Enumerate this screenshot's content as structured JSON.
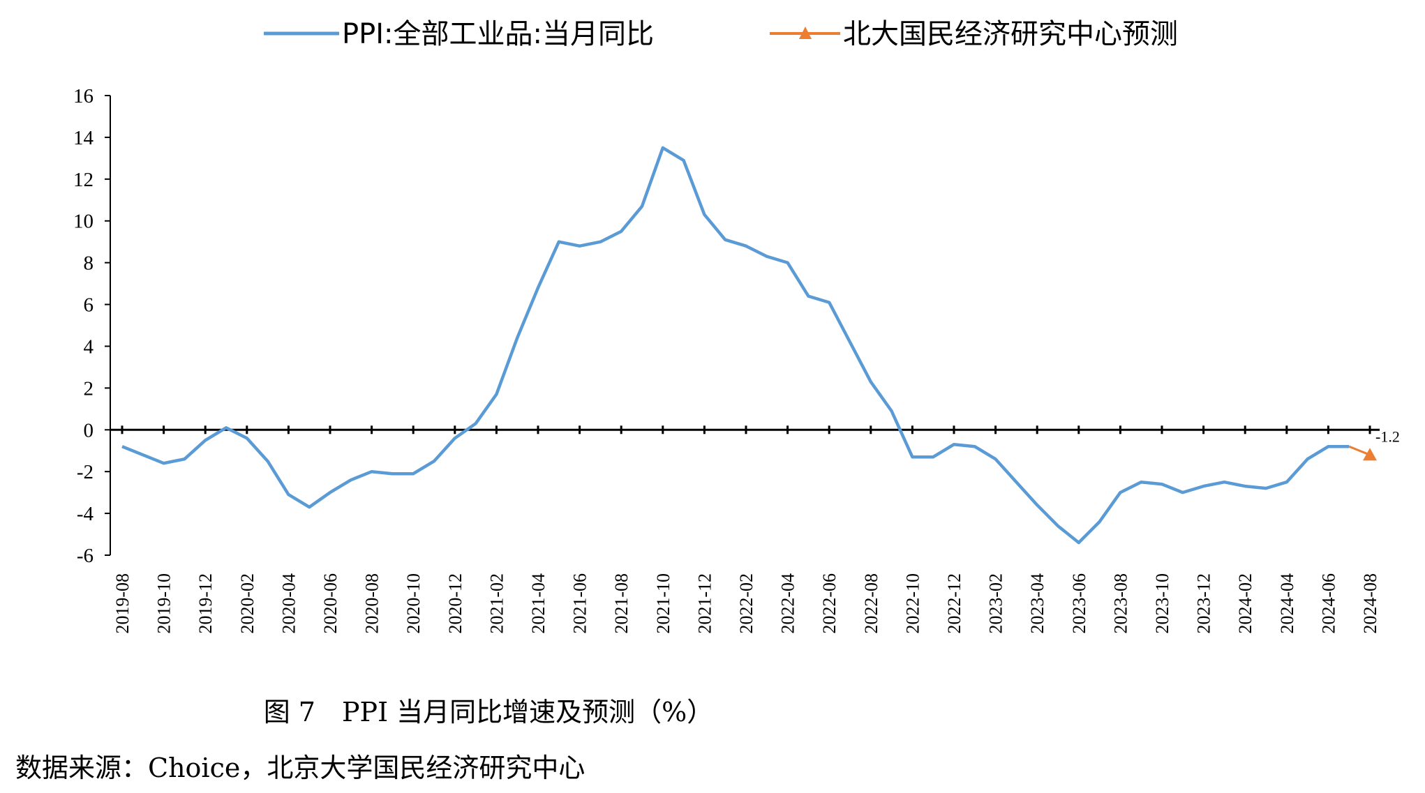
{
  "chart_data": {
    "type": "line",
    "title": "",
    "xlabel": "",
    "ylabel": "",
    "ylim": [
      -6,
      16
    ],
    "yticks": [
      -6,
      -4,
      -2,
      0,
      2,
      4,
      6,
      8,
      10,
      12,
      14,
      16
    ],
    "ytick_labels": [
      "-6",
      "-4",
      "-2",
      "0",
      "2",
      "4",
      "6",
      "8",
      "10",
      "12",
      "14",
      "16"
    ],
    "grid": false,
    "legend_position": "top-center",
    "x_categories": [
      "2019-08",
      "2019-09",
      "2019-10",
      "2019-11",
      "2019-12",
      "2020-01",
      "2020-02",
      "2020-03",
      "2020-04",
      "2020-05",
      "2020-06",
      "2020-07",
      "2020-08",
      "2020-09",
      "2020-10",
      "2020-11",
      "2020-12",
      "2021-01",
      "2021-02",
      "2021-03",
      "2021-04",
      "2021-05",
      "2021-06",
      "2021-07",
      "2021-08",
      "2021-09",
      "2021-10",
      "2021-11",
      "2021-12",
      "2022-01",
      "2022-02",
      "2022-03",
      "2022-04",
      "2022-05",
      "2022-06",
      "2022-07",
      "2022-08",
      "2022-09",
      "2022-10",
      "2022-11",
      "2022-12",
      "2023-01",
      "2023-02",
      "2023-03",
      "2023-04",
      "2023-05",
      "2023-06",
      "2023-07",
      "2023-08",
      "2023-09",
      "2023-10",
      "2023-11",
      "2023-12",
      "2024-01",
      "2024-02",
      "2024-03",
      "2024-04",
      "2024-05",
      "2024-06",
      "2024-07",
      "2024-08"
    ],
    "x_tick_labels": [
      "2019-08",
      "2019-10",
      "2019-12",
      "2020-02",
      "2020-04",
      "2020-06",
      "2020-08",
      "2020-10",
      "2020-12",
      "2021-02",
      "2021-04",
      "2021-06",
      "2021-08",
      "2021-10",
      "2021-12",
      "2022-02",
      "2022-04",
      "2022-06",
      "2022-08",
      "2022-10",
      "2022-12",
      "2023-02",
      "2023-04",
      "2023-06",
      "2023-08",
      "2023-10",
      "2023-12",
      "2024-02",
      "2024-04",
      "2024-06",
      "2024-08"
    ],
    "series": [
      {
        "name": "PPI:全部工业品:当月同比",
        "color": "#5B9BD5",
        "marker": "none",
        "values": [
          -0.8,
          -1.2,
          -1.6,
          -1.4,
          -0.5,
          0.1,
          -0.4,
          -1.5,
          -3.1,
          -3.7,
          -3.0,
          -2.4,
          -2.0,
          -2.1,
          -2.1,
          -1.5,
          -0.4,
          0.3,
          1.7,
          4.4,
          6.8,
          9.0,
          8.8,
          9.0,
          9.5,
          10.7,
          13.5,
          12.9,
          10.3,
          9.1,
          8.8,
          8.3,
          8.0,
          6.4,
          6.1,
          4.2,
          2.3,
          0.9,
          -1.3,
          -1.3,
          -0.7,
          -0.8,
          -1.4,
          -2.5,
          -3.6,
          -4.6,
          -5.4,
          -4.4,
          -3.0,
          -2.5,
          -2.6,
          -3.0,
          -2.7,
          -2.5,
          -2.7,
          -2.8,
          -2.5,
          -1.4,
          -0.8,
          -0.8,
          null
        ]
      },
      {
        "name": "北大国民经济研究中心预测",
        "color": "#ED7D31",
        "marker": "triangle",
        "x": [
          "2024-07",
          "2024-08"
        ],
        "values": [
          -0.8,
          -1.2
        ],
        "data_labels": [
          "",
          "-1.2"
        ]
      }
    ],
    "caption": "图 7　PPI 当月同比增速及预测（%）",
    "source": "数据来源：Choice，北京大学国民经济研究中心"
  }
}
